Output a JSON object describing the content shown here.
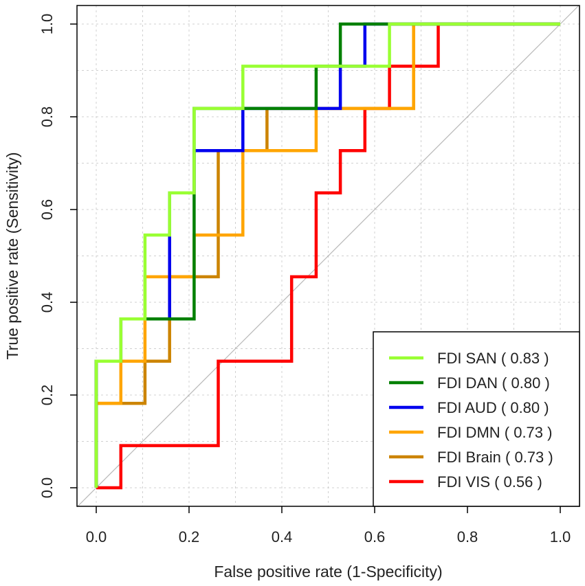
{
  "chart_data": {
    "type": "line",
    "title": "",
    "xlabel": "False positive rate (1-Specificity)",
    "ylabel": "True positive rate (Sensitivity)",
    "xlim": [
      0,
      1
    ],
    "ylim": [
      0,
      1
    ],
    "xticks": [
      "0.0",
      "0.2",
      "0.4",
      "0.6",
      "0.8",
      "1.0"
    ],
    "yticks": [
      "0.0",
      "0.2",
      "0.4",
      "0.6",
      "0.8",
      "1.0"
    ],
    "grid": true,
    "reference_line": "diagonal",
    "legend_position": "bottom-right",
    "series": [
      {
        "name": "FDI SAN ( 0.83 )",
        "color": "#99ff33",
        "points": [
          [
            0,
            0
          ],
          [
            0,
            0.182
          ],
          [
            0,
            0.273
          ],
          [
            0.053,
            0.273
          ],
          [
            0.053,
            0.364
          ],
          [
            0.105,
            0.364
          ],
          [
            0.105,
            0.455
          ],
          [
            0.105,
            0.545
          ],
          [
            0.158,
            0.545
          ],
          [
            0.158,
            0.636
          ],
          [
            0.211,
            0.636
          ],
          [
            0.211,
            0.727
          ],
          [
            0.211,
            0.818
          ],
          [
            0.316,
            0.818
          ],
          [
            0.316,
            0.909
          ],
          [
            0.474,
            0.909
          ],
          [
            0.526,
            0.909
          ],
          [
            0.579,
            0.909
          ],
          [
            0.632,
            0.909
          ],
          [
            0.632,
            1.0
          ],
          [
            1.0,
            1.0
          ]
        ]
      },
      {
        "name": "FDI DAN ( 0.80 )",
        "color": "#008000",
        "points": [
          [
            0,
            0
          ],
          [
            0,
            0.182
          ],
          [
            0,
            0.273
          ],
          [
            0.053,
            0.273
          ],
          [
            0.053,
            0.364
          ],
          [
            0.105,
            0.364
          ],
          [
            0.158,
            0.364
          ],
          [
            0.211,
            0.364
          ],
          [
            0.211,
            0.545
          ],
          [
            0.211,
            0.818
          ],
          [
            0.316,
            0.818
          ],
          [
            0.474,
            0.818
          ],
          [
            0.474,
            0.909
          ],
          [
            0.526,
            0.909
          ],
          [
            0.526,
            1.0
          ],
          [
            1.0,
            1.0
          ]
        ]
      },
      {
        "name": "FDI AUD ( 0.80 )",
        "color": "#0000ee",
        "points": [
          [
            0,
            0
          ],
          [
            0,
            0.182
          ],
          [
            0,
            0.273
          ],
          [
            0.053,
            0.273
          ],
          [
            0.053,
            0.364
          ],
          [
            0.158,
            0.364
          ],
          [
            0.158,
            0.636
          ],
          [
            0.211,
            0.636
          ],
          [
            0.211,
            0.727
          ],
          [
            0.263,
            0.727
          ],
          [
            0.316,
            0.727
          ],
          [
            0.316,
            0.818
          ],
          [
            0.368,
            0.818
          ],
          [
            0.526,
            0.818
          ],
          [
            0.526,
            0.909
          ],
          [
            0.579,
            0.909
          ],
          [
            0.579,
            1.0
          ],
          [
            1.0,
            1.0
          ]
        ]
      },
      {
        "name": "FDI DMN ( 0.73 )",
        "color": "#ffa500",
        "points": [
          [
            0,
            0
          ],
          [
            0,
            0.182
          ],
          [
            0.053,
            0.182
          ],
          [
            0.053,
            0.273
          ],
          [
            0.105,
            0.273
          ],
          [
            0.105,
            0.455
          ],
          [
            0.158,
            0.455
          ],
          [
            0.211,
            0.455
          ],
          [
            0.211,
            0.545
          ],
          [
            0.316,
            0.545
          ],
          [
            0.316,
            0.727
          ],
          [
            0.474,
            0.727
          ],
          [
            0.474,
            0.818
          ],
          [
            0.684,
            0.818
          ],
          [
            0.684,
            1.0
          ],
          [
            1.0,
            1.0
          ]
        ]
      },
      {
        "name": "FDI Brain ( 0.73 )",
        "color": "#cc8400",
        "points": [
          [
            0,
            0
          ],
          [
            0,
            0.182
          ],
          [
            0.105,
            0.182
          ],
          [
            0.105,
            0.273
          ],
          [
            0.158,
            0.273
          ],
          [
            0.158,
            0.455
          ],
          [
            0.263,
            0.455
          ],
          [
            0.263,
            0.727
          ],
          [
            0.368,
            0.727
          ],
          [
            0.368,
            0.818
          ],
          [
            0.684,
            0.818
          ],
          [
            0.684,
            1.0
          ],
          [
            1.0,
            1.0
          ]
        ]
      },
      {
        "name": "FDI VIS ( 0.56 )",
        "color": "#ff0000",
        "points": [
          [
            0,
            0
          ],
          [
            0.053,
            0
          ],
          [
            0.053,
            0.091
          ],
          [
            0.263,
            0.091
          ],
          [
            0.263,
            0.273
          ],
          [
            0.421,
            0.273
          ],
          [
            0.421,
            0.455
          ],
          [
            0.474,
            0.455
          ],
          [
            0.474,
            0.636
          ],
          [
            0.526,
            0.636
          ],
          [
            0.526,
            0.727
          ],
          [
            0.579,
            0.727
          ],
          [
            0.579,
            0.818
          ],
          [
            0.632,
            0.818
          ],
          [
            0.632,
            0.909
          ],
          [
            0.737,
            0.909
          ],
          [
            0.737,
            1.0
          ],
          [
            1.0,
            1.0
          ]
        ]
      }
    ]
  }
}
